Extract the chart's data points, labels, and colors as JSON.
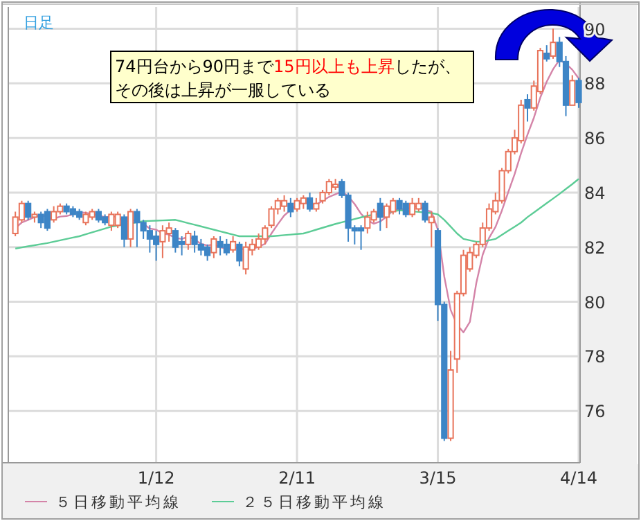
{
  "chart_data": {
    "type": "candlestick",
    "annotations": [
      "日足",
      "74円台から90円まで",
      "15円以上も上昇",
      "したが、",
      "その後は上昇が一服している"
    ],
    "categories": [
      null,
      null,
      null,
      null,
      null,
      null,
      null,
      null,
      null,
      null,
      null,
      null,
      null,
      null,
      null,
      null,
      null,
      null,
      null,
      null,
      null,
      null,
      "1/12",
      null,
      null,
      null,
      null,
      null,
      null,
      null,
      null,
      null,
      null,
      null,
      null,
      null,
      null,
      null,
      null,
      null,
      null,
      null,
      null,
      null,
      "2/11",
      null,
      null,
      null,
      null,
      null,
      null,
      null,
      null,
      null,
      null,
      null,
      null,
      null,
      null,
      null,
      null,
      null,
      null,
      null,
      null,
      null,
      "3/15",
      null,
      null,
      null,
      null,
      null,
      null,
      null,
      null,
      null,
      null,
      null,
      null,
      null,
      null,
      null,
      null,
      null,
      null,
      null,
      null,
      null,
      "4/14"
    ],
    "colors": [
      "#e8735a",
      "#e8735a",
      "#3d85c6",
      "#e8735a",
      "#3d85c6",
      "#3d85c6",
      "#e8735a",
      "#e8735a",
      "#3d85c6",
      "#3d85c6",
      "#3d85c6",
      "#e8735a",
      "#e8735a",
      "#3d85c6",
      "#3d85c6",
      "#e8735a",
      "#e8735a",
      "#3d85c6",
      "#e8735a",
      "#3d85c6",
      "#3d85c6",
      "#3d85c6",
      "#3d85c6",
      "#e8735a",
      "#e8735a",
      "#3d85c6",
      "#3d85c6",
      "#e8735a",
      "#3d85c6",
      "#3d85c6",
      "#3d85c6",
      "#e8735a",
      "#3d85c6",
      "#3d85c6",
      "#e8735a",
      "#3d85c6",
      "#e8735a",
      "#e8735a",
      "#e8735a",
      "#e8735a",
      "#e8735a",
      "#e8735a",
      "#e8735a",
      "#3d85c6",
      "#e8735a",
      "#e8735a",
      "#3d85c6",
      "#e8735a",
      "#e8735a",
      "#e8735a",
      "#e8735a",
      "#3d85c6",
      "#3d85c6",
      "#3d85c6",
      "#3d85c6",
      "#e8735a",
      "#e8735a",
      "#3d85c6",
      "#e8735a",
      "#e8735a",
      "#3d85c6",
      "#3d85c6",
      "#e8735a",
      "#e8735a",
      "#3d85c6",
      "#e8735a",
      "#3d85c6",
      "#3d85c6",
      "#e8735a",
      "#e8735a",
      "#e8735a",
      "#e8735a",
      "#e8735a",
      "#e8735a",
      "#e8735a",
      "#e8735a",
      "#e8735a",
      "#e8735a",
      "#e8735a",
      "#e8735a",
      "#3d85c6",
      "#e8735a",
      "#e8735a",
      "#3d85c6",
      "#e8735a",
      "#3d85c6",
      "#3d85c6",
      "#e8735a",
      "#3d85c6"
    ],
    "ohlc": [
      [
        82.5,
        83.3,
        82.4,
        83.1
      ],
      [
        83.0,
        83.7,
        82.9,
        83.6
      ],
      [
        83.6,
        83.7,
        83.0,
        83.1
      ],
      [
        83.1,
        83.3,
        82.9,
        83.2
      ],
      [
        83.2,
        83.3,
        82.7,
        82.9
      ],
      [
        83.3,
        83.4,
        82.6,
        82.7
      ],
      [
        83.0,
        83.5,
        82.9,
        83.3
      ],
      [
        83.3,
        83.6,
        83.2,
        83.5
      ],
      [
        83.5,
        83.6,
        83.2,
        83.3
      ],
      [
        83.4,
        83.5,
        83.1,
        83.2
      ],
      [
        83.3,
        83.4,
        83.0,
        83.1
      ],
      [
        82.9,
        83.3,
        82.8,
        83.2
      ],
      [
        83.1,
        83.4,
        83.0,
        83.3
      ],
      [
        83.3,
        83.4,
        82.9,
        83.0
      ],
      [
        83.1,
        83.2,
        82.8,
        82.9
      ],
      [
        82.8,
        83.3,
        82.6,
        83.2
      ],
      [
        82.8,
        83.3,
        82.7,
        83.2
      ],
      [
        83.1,
        83.2,
        82.0,
        82.3
      ],
      [
        82.3,
        83.4,
        82.0,
        83.3
      ],
      [
        83.3,
        83.4,
        82.0,
        82.9
      ],
      [
        82.9,
        83.0,
        82.3,
        82.6
      ],
      [
        82.6,
        82.8,
        81.8,
        82.3
      ],
      [
        82.4,
        82.6,
        81.5,
        82.1
      ],
      [
        82.2,
        82.8,
        81.6,
        82.6
      ],
      [
        82.5,
        82.9,
        82.2,
        82.7
      ],
      [
        82.6,
        82.7,
        81.8,
        82.0
      ],
      [
        82.2,
        82.4,
        81.7,
        82.1
      ],
      [
        82.1,
        82.6,
        81.9,
        82.5
      ],
      [
        82.4,
        82.6,
        81.8,
        82.1
      ],
      [
        82.1,
        82.3,
        81.7,
        81.9
      ],
      [
        82.0,
        82.1,
        81.5,
        81.7
      ],
      [
        81.8,
        82.4,
        81.6,
        82.3
      ],
      [
        82.2,
        82.4,
        81.7,
        82.0
      ],
      [
        82.1,
        82.3,
        81.7,
        81.8
      ],
      [
        81.9,
        82.4,
        81.8,
        82.2
      ],
      [
        82.1,
        82.2,
        81.3,
        81.5
      ],
      [
        81.2,
        82.2,
        81.0,
        82.0
      ],
      [
        81.9,
        82.3,
        81.7,
        82.1
      ],
      [
        82.0,
        82.5,
        81.9,
        82.3
      ],
      [
        82.3,
        82.8,
        82.1,
        82.7
      ],
      [
        82.8,
        83.5,
        82.7,
        83.4
      ],
      [
        83.4,
        83.8,
        83.2,
        83.7
      ],
      [
        83.5,
        83.9,
        83.3,
        83.7
      ],
      [
        83.6,
        83.8,
        83.1,
        83.3
      ],
      [
        83.4,
        83.8,
        83.3,
        83.7
      ],
      [
        83.6,
        83.9,
        83.4,
        83.8
      ],
      [
        83.8,
        84.0,
        83.3,
        83.4
      ],
      [
        83.4,
        83.8,
        83.3,
        83.6
      ],
      [
        83.7,
        84.1,
        83.6,
        84.0
      ],
      [
        84.0,
        84.5,
        83.9,
        84.4
      ],
      [
        84.2,
        84.5,
        84.1,
        84.3
      ],
      [
        84.4,
        84.5,
        83.8,
        83.9
      ],
      [
        83.9,
        84.0,
        82.2,
        82.7
      ],
      [
        82.7,
        82.8,
        82.1,
        82.6
      ],
      [
        82.7,
        82.8,
        81.9,
        82.6
      ],
      [
        82.7,
        83.3,
        82.5,
        83.1
      ],
      [
        83.0,
        83.4,
        82.9,
        83.3
      ],
      [
        83.6,
        83.8,
        82.6,
        83.1
      ],
      [
        83.1,
        83.6,
        82.7,
        83.5
      ],
      [
        83.3,
        83.8,
        83.2,
        83.7
      ],
      [
        83.7,
        83.8,
        83.2,
        83.4
      ],
      [
        83.6,
        83.7,
        83.1,
        83.2
      ],
      [
        83.2,
        83.8,
        83.1,
        83.6
      ],
      [
        83.4,
        83.8,
        83.3,
        83.6
      ],
      [
        83.6,
        83.7,
        82.9,
        83.0
      ],
      [
        82.9,
        83.3,
        82.0,
        83.1
      ],
      [
        82.6,
        82.7,
        79.3,
        79.9
      ],
      [
        79.9,
        80.0,
        74.9,
        75.0
      ],
      [
        75.0,
        78.2,
        74.9,
        77.5
      ],
      [
        77.9,
        80.4,
        77.4,
        80.3
      ],
      [
        80.3,
        81.9,
        80.2,
        81.7
      ],
      [
        81.2,
        82.0,
        81.1,
        81.8
      ],
      [
        81.7,
        82.2,
        81.6,
        82.1
      ],
      [
        82.1,
        82.9,
        82.0,
        82.7
      ],
      [
        82.7,
        83.6,
        82.6,
        83.4
      ],
      [
        83.3,
        84.0,
        83.2,
        83.7
      ],
      [
        83.7,
        84.9,
        83.6,
        84.8
      ],
      [
        84.8,
        85.6,
        84.7,
        85.5
      ],
      [
        85.5,
        86.3,
        85.4,
        86.0
      ],
      [
        85.9,
        87.4,
        85.8,
        87.2
      ],
      [
        87.4,
        87.6,
        86.6,
        87.1
      ],
      [
        87.1,
        88.1,
        87.0,
        87.9
      ],
      [
        87.7,
        89.3,
        87.6,
        89.2
      ],
      [
        89.1,
        89.4,
        88.8,
        88.9
      ],
      [
        89.0,
        90.0,
        88.9,
        89.5
      ],
      [
        89.5,
        89.7,
        88.6,
        88.8
      ],
      [
        88.8,
        89.0,
        86.8,
        87.2
      ],
      [
        87.2,
        88.3,
        87.2,
        88.1
      ],
      [
        88.1,
        88.2,
        87.1,
        87.3
      ]
    ],
    "series": [
      {
        "name": "５日移動平均線",
        "type": "line",
        "color": "#d484a8",
        "values": [
          82.7,
          82.9,
          83.0,
          83.1,
          83.18,
          83.1,
          83.04,
          83.12,
          83.14,
          83.2,
          83.28,
          83.26,
          83.22,
          83.16,
          83.1,
          83.12,
          83.12,
          82.92,
          82.98,
          82.98,
          82.86,
          82.68,
          82.64,
          82.5,
          82.46,
          82.34,
          82.3,
          82.38,
          82.28,
          82.12,
          82.06,
          82.1,
          82.0,
          81.94,
          82.0,
          81.96,
          81.9,
          81.92,
          82.02,
          82.12,
          82.5,
          82.84,
          83.16,
          83.36,
          83.56,
          83.64,
          83.58,
          83.56,
          83.7,
          83.84,
          83.94,
          84.04,
          83.86,
          83.58,
          83.22,
          82.98,
          82.86,
          82.94,
          83.12,
          83.34,
          83.4,
          83.38,
          83.48,
          83.5,
          83.36,
          83.3,
          82.64,
          80.92,
          79.7,
          79.16,
          78.88,
          79.26,
          80.68,
          81.72,
          82.34,
          82.74,
          83.34,
          84.02,
          84.68,
          85.44,
          86.12,
          86.74,
          87.48,
          88.06,
          88.52,
          88.86,
          88.72,
          88.5,
          88.18
        ]
      },
      {
        "name": "２５日移動平均線",
        "type": "line",
        "color": "#5ccc96",
        "values": [
          81.95,
          81.99,
          82.03,
          82.07,
          82.11,
          82.15,
          82.2,
          82.25,
          82.3,
          82.35,
          82.4,
          82.47,
          82.54,
          82.61,
          82.68,
          82.75,
          82.79,
          82.83,
          82.87,
          82.91,
          82.95,
          82.96,
          82.97,
          82.98,
          82.99,
          83.0,
          82.94,
          82.88,
          82.82,
          82.76,
          82.7,
          82.64,
          82.58,
          82.52,
          82.46,
          82.4,
          82.4,
          82.4,
          82.4,
          82.4,
          82.4,
          82.42,
          82.44,
          82.46,
          82.48,
          82.5,
          82.57,
          82.64,
          82.71,
          82.78,
          82.85,
          82.91,
          82.97,
          83.03,
          83.09,
          83.15,
          83.19,
          83.23,
          83.27,
          83.31,
          83.35,
          83.33,
          83.31,
          83.29,
          83.27,
          83.25,
          83.2,
          83.0,
          82.75,
          82.5,
          82.3,
          82.25,
          82.2,
          82.2,
          82.25,
          82.3,
          82.45,
          82.6,
          82.75,
          82.9,
          83.1,
          83.27,
          83.44,
          83.61,
          83.78,
          83.95,
          84.13,
          84.31,
          84.5
        ]
      }
    ],
    "ylim": [
      74.1,
      90.8
    ],
    "yticks": [
      76,
      78,
      80,
      82,
      84,
      86,
      88,
      90
    ],
    "grid": true,
    "legend": "bottom"
  }
}
